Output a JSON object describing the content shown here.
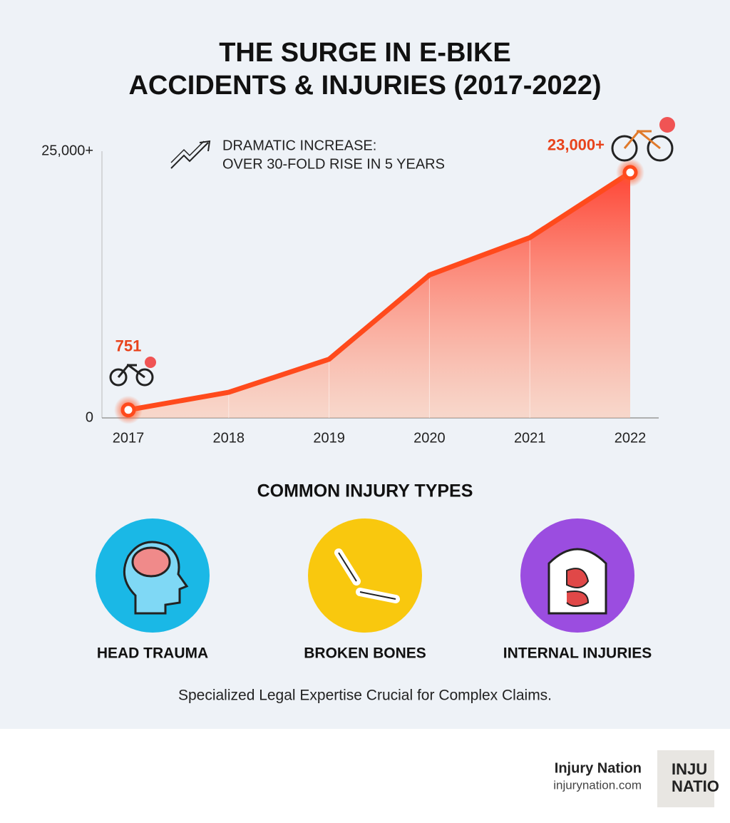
{
  "chart_data": {
    "type": "area",
    "title": [
      "THE SURGE IN E-BIKE",
      "ACCIDENTS & INJURIES (2017-2022)"
    ],
    "annotation": [
      "DRAMATIC INCREASE:",
      "OVER 30-FOLD RISE IN 5 YEARS"
    ],
    "categories": [
      "2017",
      "2018",
      "2019",
      "2020",
      "2021",
      "2022"
    ],
    "values": [
      751,
      2400,
      5500,
      13400,
      16900,
      23000
    ],
    "value_labels": [
      "751",
      null,
      null,
      null,
      null,
      "23,000+"
    ],
    "color": "#ff4a1c",
    "ylim": [
      0,
      25000
    ],
    "yticks": [
      0,
      {
        "value": 25000,
        "label": "25,000+"
      }
    ]
  },
  "injuries": {
    "title": "COMMON INJURY TYPES",
    "items": [
      "HEAD TRAUMA",
      "BROKEN BONES",
      "INTERNAL INJURIES"
    ]
  },
  "footnote": "Specialized Legal Expertise Crucial for Complex Claims.",
  "brand": {
    "name": "Injury Nation",
    "url": "injurynation.com",
    "logo": [
      "INJU",
      "NATIO"
    ]
  }
}
